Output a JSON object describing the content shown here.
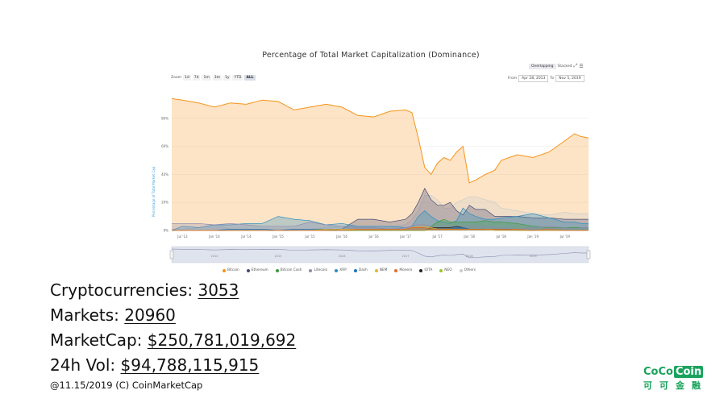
{
  "chart_data": {
    "type": "area",
    "title": "Percentage of Total Market Capitalization (Dominance)",
    "ylabel": "Percentage of Total Market Cap",
    "yticks": [
      "0%",
      "20%",
      "40%",
      "60%",
      "80%"
    ],
    "ylim": [
      0,
      100
    ],
    "xticks": [
      "Jul '13",
      "Jan '14",
      "Jul '14",
      "Jan '15",
      "Jul '15",
      "Jan '16",
      "Jul '16",
      "Jan '17",
      "Jul '17",
      "Jan '18",
      "Jul '18",
      "Jan '19",
      "Jul '19"
    ],
    "x": [
      2013.33,
      2013.5,
      2013.75,
      2014.0,
      2014.25,
      2014.5,
      2014.75,
      2015.0,
      2015.25,
      2015.5,
      2015.75,
      2016.0,
      2016.25,
      2016.5,
      2016.75,
      2017.0,
      2017.1,
      2017.2,
      2017.3,
      2017.4,
      2017.5,
      2017.6,
      2017.7,
      2017.8,
      2017.9,
      2018.0,
      2018.1,
      2018.25,
      2018.4,
      2018.5,
      2018.75,
      2019.0,
      2019.25,
      2019.5,
      2019.65,
      2019.75,
      2019.87
    ],
    "series": [
      {
        "name": "Bitcoin",
        "values": [
          94,
          93,
          91,
          88,
          91,
          90,
          93,
          92,
          86,
          88,
          90,
          88,
          82,
          81,
          85,
          86,
          84,
          66,
          45,
          40,
          48,
          52,
          50,
          56,
          60,
          34,
          36,
          40,
          43,
          50,
          54,
          52,
          56,
          64,
          69,
          67,
          66
        ]
      },
      {
        "name": "Ethereum",
        "values": [
          0,
          0,
          0,
          0,
          0,
          0,
          0,
          0,
          0,
          0,
          0,
          1,
          8,
          8,
          6,
          8,
          12,
          20,
          30,
          22,
          18,
          18,
          20,
          14,
          11,
          18,
          15,
          15,
          10,
          10,
          10,
          9,
          9,
          8,
          8,
          8,
          8
        ]
      },
      {
        "name": "Bitcoin Cash",
        "values": [
          0,
          0,
          0,
          0,
          0,
          0,
          0,
          0,
          0,
          0,
          0,
          0,
          0,
          0,
          0,
          0,
          0,
          0,
          0,
          3,
          6,
          8,
          6,
          6,
          6,
          6,
          6,
          7,
          6,
          6,
          5,
          3,
          2,
          2,
          2,
          2,
          2
        ]
      },
      {
        "name": "Litecoin",
        "values": [
          5,
          5,
          5,
          4,
          5,
          4,
          3,
          3,
          3,
          6,
          4,
          3,
          2,
          2,
          1,
          2,
          3,
          4,
          4,
          3,
          2,
          3,
          3,
          3,
          3,
          3,
          3,
          3,
          2,
          2,
          1,
          2,
          3,
          2,
          1,
          2,
          2
        ]
      },
      {
        "name": "XRP",
        "values": [
          0,
          3,
          2,
          4,
          4,
          5,
          5,
          10,
          8,
          7,
          4,
          5,
          3,
          3,
          3,
          2,
          3,
          10,
          14,
          10,
          7,
          6,
          5,
          7,
          16,
          12,
          10,
          8,
          8,
          9,
          10,
          12,
          9,
          6,
          6,
          5,
          5
        ]
      },
      {
        "name": "Dash",
        "values": [
          0,
          0,
          0,
          0,
          1,
          1,
          1,
          0,
          1,
          1,
          1,
          0,
          1,
          1,
          1,
          1,
          2,
          2,
          2,
          1,
          1,
          1,
          1,
          2,
          2,
          1,
          1,
          1,
          1,
          1,
          0,
          0,
          0,
          0,
          0,
          0,
          0
        ]
      },
      {
        "name": "NEM",
        "values": [
          0,
          0,
          0,
          0,
          0,
          0,
          0,
          0,
          0,
          0,
          1,
          1,
          1,
          1,
          1,
          1,
          2,
          3,
          3,
          2,
          1,
          1,
          1,
          1,
          1,
          1,
          1,
          1,
          0,
          0,
          0,
          0,
          0,
          0,
          0,
          0,
          0
        ]
      },
      {
        "name": "Monero",
        "values": [
          0,
          0,
          0,
          0,
          0,
          0,
          0,
          0,
          0,
          0,
          0,
          0,
          1,
          1,
          1,
          1,
          2,
          2,
          2,
          1,
          1,
          1,
          1,
          1,
          1,
          1,
          1,
          1,
          1,
          1,
          1,
          0,
          1,
          0,
          0,
          0,
          0
        ]
      },
      {
        "name": "IOTA",
        "values": [
          0,
          0,
          0,
          0,
          0,
          0,
          0,
          0,
          0,
          0,
          0,
          0,
          0,
          0,
          0,
          0,
          0,
          0,
          0,
          2,
          2,
          2,
          2,
          3,
          2,
          1,
          1,
          1,
          1,
          1,
          0,
          0,
          0,
          0,
          0,
          0,
          0
        ]
      },
      {
        "name": "NEO",
        "values": [
          0,
          0,
          0,
          0,
          0,
          0,
          0,
          0,
          0,
          0,
          0,
          0,
          0,
          0,
          0,
          0,
          0,
          0,
          0,
          1,
          1,
          1,
          1,
          1,
          1,
          1,
          1,
          1,
          1,
          1,
          0,
          0,
          0,
          0,
          0,
          0,
          0
        ]
      },
      {
        "name": "Others",
        "values": [
          1,
          1,
          2,
          4,
          1,
          1,
          1,
          1,
          1,
          1,
          2,
          3,
          3,
          3,
          3,
          4,
          8,
          14,
          25,
          25,
          22,
          16,
          16,
          20,
          22,
          24,
          24,
          22,
          20,
          16,
          14,
          12,
          11,
          13,
          12,
          12,
          12
        ]
      }
    ],
    "colors": {
      "Bitcoin": "#f7931a",
      "Ethereum": "#454a75",
      "Bitcoin Cash": "#3a9a3a",
      "Litecoin": "#8f8ab0",
      "XRP": "#2a8fc0",
      "Dash": "#1c75bc",
      "NEM": "#e8b628",
      "Monero": "#e96c24",
      "IOTA": "#222222",
      "NEO": "#9ac52b",
      "Others": "#cccccc"
    },
    "legend_position": "bottom",
    "grid": true,
    "toolbar": {
      "zoom_label": "Zoom",
      "zoom_buttons": [
        "1d",
        "7d",
        "1m",
        "3m",
        "1y",
        "YTD",
        "ALL"
      ],
      "active_zoom": "ALL",
      "from_label": "From",
      "from_value": "Apr 28, 2013",
      "to_label": "To",
      "to_value": "Nov 5, 2019",
      "overlapping_label": "Overlapping",
      "stacked_label": "Stacked"
    },
    "navigator_ticks": [
      "2014",
      "2015",
      "2016",
      "2017",
      "2018",
      "2019"
    ]
  },
  "stats": {
    "crypto_label": "Cryptocurrencies:",
    "crypto_value": "3053",
    "markets_label": "Markets:",
    "markets_value": "20960",
    "marketcap_label": "MarketCap:",
    "marketcap_value": "$250,781,019,692",
    "vol_label": "24h Vol:",
    "vol_value": "$94,788,115,915"
  },
  "source_text": "@11.15/2019  (C)  CoinMarketCap",
  "logo": {
    "text_coco": "CoCo",
    "text_coin": "Coin",
    "text_cn": "可可金融",
    "color": "#1aa35d"
  }
}
